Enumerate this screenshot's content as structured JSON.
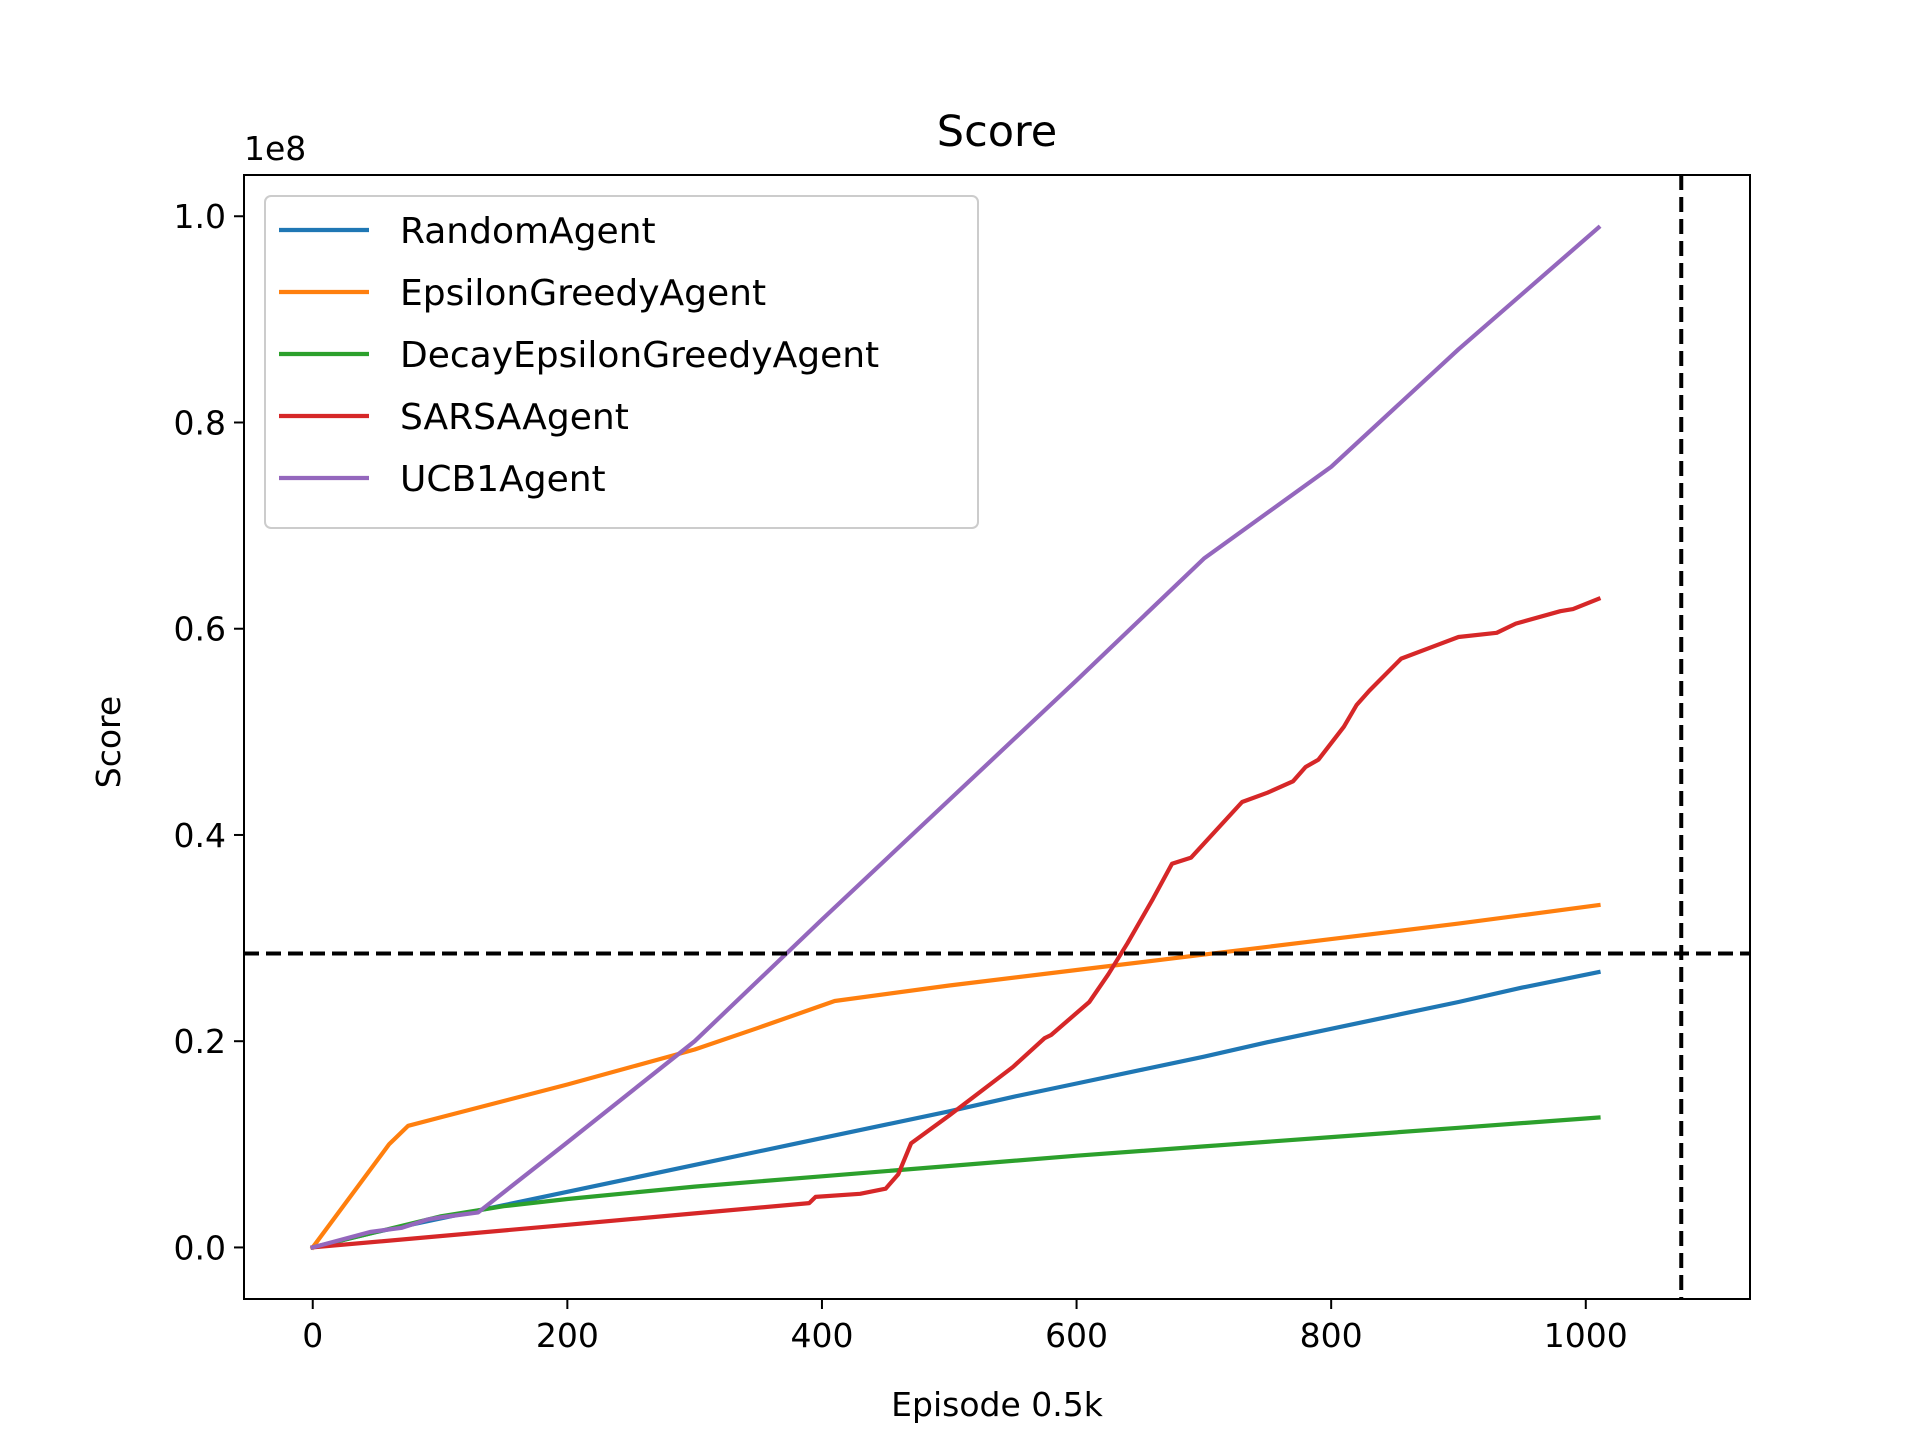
{
  "chart_data": {
    "type": "line",
    "title": "Score",
    "xlabel": "Episode 0.5k",
    "ylabel": "Score",
    "y_offset_label": "1e8",
    "xlim": [
      -54,
      1129
    ],
    "ylim": [
      -0.05,
      1.04
    ],
    "x_ticks": [
      0,
      200,
      400,
      600,
      800,
      1000
    ],
    "x_tick_labels": [
      "0",
      "200",
      "400",
      "600",
      "800",
      "1000"
    ],
    "y_ticks": [
      0.0,
      0.2,
      0.4,
      0.6,
      0.8,
      1.0
    ],
    "y_tick_labels": [
      "0.0",
      "0.2",
      "0.4",
      "0.6",
      "0.8",
      "1.0"
    ],
    "grid": false,
    "legend_position": "upper-left",
    "reference_lines": {
      "horizontal_y": 0.285,
      "vertical_x": 1075
    },
    "series": [
      {
        "name": "RandomAgent",
        "color": "#1f77b4",
        "x": [
          0,
          50,
          100,
          150,
          200,
          250,
          300,
          350,
          400,
          450,
          500,
          550,
          600,
          650,
          700,
          750,
          800,
          850,
          900,
          950,
          1010
        ],
        "y": [
          0.0,
          0.015,
          0.028,
          0.041,
          0.054,
          0.067,
          0.08,
          0.093,
          0.106,
          0.119,
          0.132,
          0.146,
          0.159,
          0.172,
          0.185,
          0.199,
          0.212,
          0.225,
          0.238,
          0.252,
          0.267
        ]
      },
      {
        "name": "EpsilonGreedyAgent",
        "color": "#ff7f0e",
        "x": [
          0,
          60,
          75,
          100,
          150,
          200,
          250,
          300,
          350,
          410,
          500,
          600,
          700,
          800,
          900,
          1010
        ],
        "y": [
          0.0,
          0.1,
          0.118,
          0.126,
          0.142,
          0.158,
          0.175,
          0.192,
          0.213,
          0.239,
          0.254,
          0.269,
          0.284,
          0.299,
          0.314,
          0.332
        ]
      },
      {
        "name": "DecayEpsilonGreedyAgent",
        "color": "#2ca02c",
        "x": [
          0,
          50,
          100,
          150,
          200,
          300,
          400,
          500,
          600,
          700,
          800,
          900,
          1010
        ],
        "y": [
          0.0,
          0.015,
          0.03,
          0.04,
          0.047,
          0.059,
          0.069,
          0.079,
          0.089,
          0.098,
          0.107,
          0.116,
          0.126
        ]
      },
      {
        "name": "SARSAAgent",
        "color": "#d62728",
        "x": [
          0,
          100,
          200,
          300,
          390,
          395,
          430,
          450,
          460,
          470,
          500,
          550,
          575,
          580,
          610,
          625,
          640,
          660,
          675,
          690,
          730,
          750,
          770,
          780,
          790,
          810,
          820,
          830,
          855,
          885,
          900,
          930,
          945,
          980,
          990,
          1010
        ],
        "y": [
          0.0,
          0.011,
          0.022,
          0.033,
          0.043,
          0.049,
          0.052,
          0.057,
          0.071,
          0.101,
          0.128,
          0.175,
          0.203,
          0.206,
          0.238,
          0.265,
          0.295,
          0.338,
          0.372,
          0.378,
          0.432,
          0.441,
          0.452,
          0.466,
          0.473,
          0.505,
          0.526,
          0.54,
          0.571,
          0.585,
          0.592,
          0.596,
          0.605,
          0.617,
          0.619,
          0.629
        ]
      },
      {
        "name": "UCB1Agent",
        "color": "#9467bd",
        "x": [
          0,
          45,
          70,
          90,
          100,
          130,
          200,
          300,
          400,
          500,
          600,
          700,
          800,
          900,
          1010
        ],
        "y": [
          0.0,
          0.015,
          0.019,
          0.027,
          0.029,
          0.034,
          0.102,
          0.2,
          0.318,
          0.434,
          0.55,
          0.668,
          0.757,
          0.871,
          0.989
        ]
      }
    ]
  }
}
